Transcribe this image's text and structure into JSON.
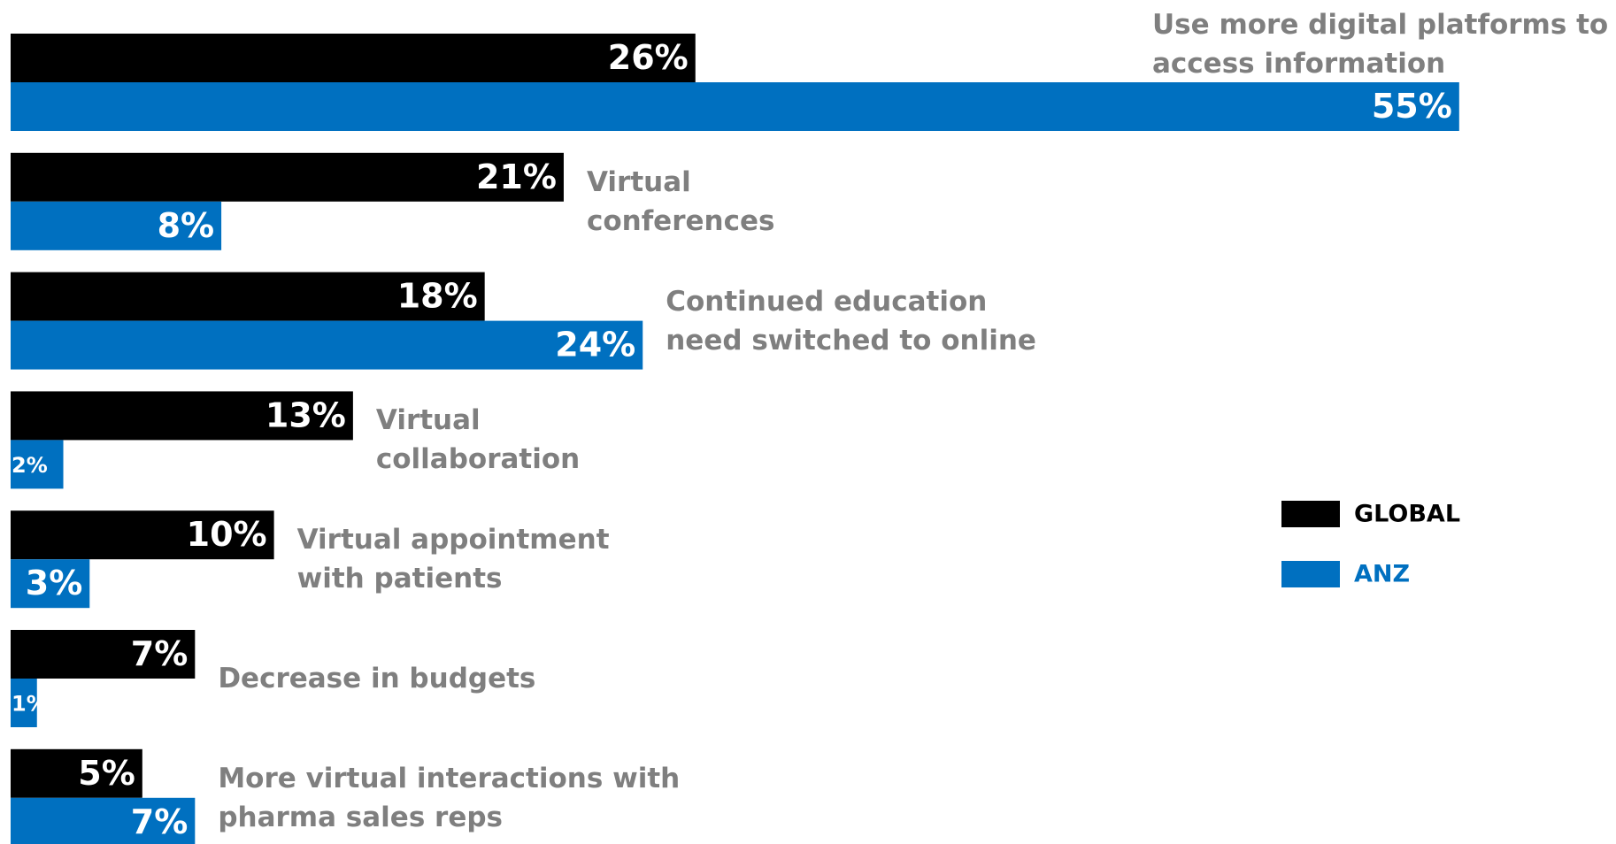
{
  "chart_data": {
    "type": "hbar",
    "categories": [
      "Use more digital platforms to access information",
      "Virtual conferences",
      "Continued education need switched to online",
      "Virtual collaboration",
      "Virtual appointment with patients",
      "Decrease in budgets",
      "More virtual interactions with pharma sales reps"
    ],
    "series": [
      {
        "name": "GLOBAL",
        "color": "#000000",
        "values": [
          26,
          21,
          18,
          13,
          10,
          7,
          5
        ],
        "value_labels": [
          "26%",
          "21%",
          "18%",
          "13%",
          "10%",
          "7%",
          "5%"
        ]
      },
      {
        "name": "ANZ",
        "color": "#0070c0",
        "values": [
          55,
          8,
          24,
          2,
          3,
          1,
          7
        ],
        "value_labels": [
          "55%",
          "8%",
          "24%",
          "2%",
          "3%",
          "1%",
          "7%"
        ]
      }
    ],
    "legend": "right"
  }
}
